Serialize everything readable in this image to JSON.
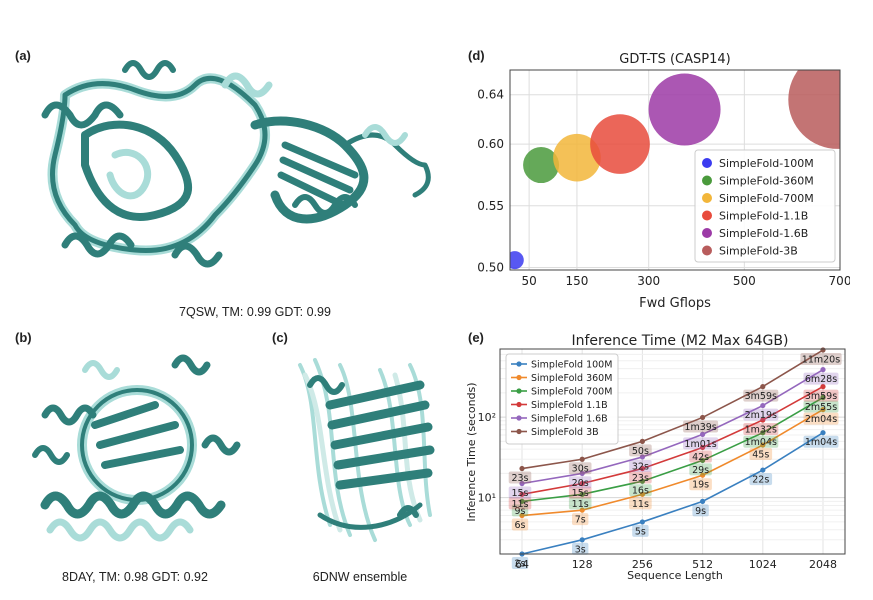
{
  "panels": {
    "a": {
      "label": "(a)",
      "caption": "7QSW, TM: 0.99 GDT: 0.99"
    },
    "b": {
      "label": "(b)",
      "caption": "8DAY, TM: 0.98 GDT: 0.92"
    },
    "c": {
      "label": "(c)",
      "caption": "6DNW ensemble"
    },
    "d": {
      "label": "(d)"
    },
    "e": {
      "label": "(e)"
    }
  },
  "colors": {
    "protein_dark": "#2f7f7a",
    "protein_light": "#a9dcd8"
  },
  "chart_data": [
    {
      "type": "scatter",
      "title": "GDT-TS (CASP14)",
      "xlabel": "Fwd Gflops",
      "ylabel": "",
      "xticks": [
        "50",
        "150",
        "300",
        "500",
        "700"
      ],
      "yticks": [
        "0.50",
        "0.55",
        "0.60",
        "0.64"
      ],
      "xticks_num": [
        50,
        150,
        300,
        500,
        700
      ],
      "yticks_num": [
        0.5,
        0.55,
        0.6,
        0.64
      ],
      "xlim": [
        10,
        700
      ],
      "ylim": [
        0.498,
        0.66
      ],
      "grid": true,
      "legend_position": "center-right",
      "series": [
        {
          "name": "SimpleFold-100M",
          "x": 20,
          "y": 0.506,
          "size": 1,
          "color": "#3b3bf0"
        },
        {
          "name": "SimpleFold-360M",
          "x": 75,
          "y": 0.583,
          "size": 4,
          "color": "#4a9a3c"
        },
        {
          "name": "SimpleFold-700M",
          "x": 150,
          "y": 0.589,
          "size": 7,
          "color": "#f2b63a"
        },
        {
          "name": "SimpleFold-1.1B",
          "x": 240,
          "y": 0.6,
          "size": 11,
          "color": "#e84b3c"
        },
        {
          "name": "SimpleFold-1.6B",
          "x": 375,
          "y": 0.628,
          "size": 16,
          "color": "#9c3aa6"
        },
        {
          "name": "SimpleFold-3B",
          "x": 695,
          "y": 0.636,
          "size": 30,
          "color": "#b85c5c"
        }
      ]
    },
    {
      "type": "line",
      "title": "Inference Time (M2 Max 64GB)",
      "xlabel": "Sequence Length",
      "ylabel": "Inference Time (seconds)",
      "x": [
        64,
        128,
        256,
        512,
        1024,
        2048
      ],
      "xticks": [
        "64",
        "128",
        "256",
        "512",
        "1024",
        "2048"
      ],
      "yticks": [
        "10¹",
        "10²"
      ],
      "yscale": "log",
      "ylim": [
        2,
        700
      ],
      "grid": true,
      "legend_position": "top-left",
      "series": [
        {
          "name": "SimpleFold 100M",
          "color": "#3a80c0",
          "values": [
            2,
            3,
            5,
            9,
            22,
            64
          ],
          "labels": [
            "2s",
            "3s",
            "5s",
            "9s",
            "22s",
            "1m04s"
          ]
        },
        {
          "name": "SimpleFold 360M",
          "color": "#f08a2c",
          "values": [
            6,
            7,
            11,
            19,
            45,
            124
          ],
          "labels": [
            "6s",
            "7s",
            "11s",
            "19s",
            "45s",
            "2m04s"
          ]
        },
        {
          "name": "SimpleFold 700M",
          "color": "#3a9e45",
          "values": [
            9,
            11,
            16,
            29,
            64,
            175
          ],
          "labels": [
            "9s",
            "11s",
            "16s",
            "29s",
            "1m04s",
            "2m55s"
          ]
        },
        {
          "name": "SimpleFold 1.1B",
          "color": "#d33a3a",
          "values": [
            11,
            15,
            23,
            42,
            92,
            239
          ],
          "labels": [
            "11s",
            "15s",
            "23s",
            "42s",
            "1m32s",
            "3m59s"
          ]
        },
        {
          "name": "SimpleFold 1.6B",
          "color": "#9467bd",
          "values": [
            15,
            20,
            32,
            61,
            139,
            388
          ],
          "labels": [
            "15s",
            "20s",
            "32s",
            "1m01s",
            "2m19s",
            "6m28s"
          ]
        },
        {
          "name": "SimpleFold 3B",
          "color": "#8c564b",
          "values": [
            23,
            30,
            50,
            99,
            239,
            680
          ],
          "labels": [
            "23s",
            "30s",
            "50s",
            "1m39s",
            "3m59s",
            "11m20s"
          ]
        }
      ]
    }
  ]
}
